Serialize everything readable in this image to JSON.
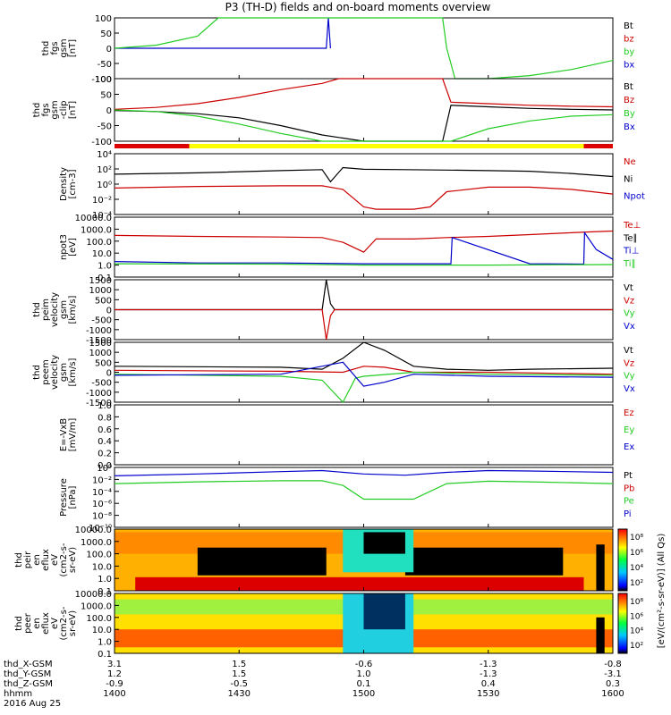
{
  "title": "P3 (TH-D) fields and on-board moments overview",
  "panels": [
    {
      "id": "fgs_gsm",
      "ylabel_lines": [
        "thd",
        "fgs",
        "gsm",
        "[nT]"
      ],
      "ticks": [
        "100",
        "50",
        "0",
        "-50",
        "-100"
      ],
      "legend": [
        {
          "label": "Bt",
          "color": "#000000"
        },
        {
          "label": "bz",
          "color": "#cc0000"
        },
        {
          "label": "by",
          "color": "#22cc22"
        },
        {
          "label": "bx",
          "color": "#0000cc"
        }
      ]
    },
    {
      "id": "fgs_gsm_clip",
      "ylabel_lines": [
        "thd",
        "fgs",
        "gsm",
        "-clip",
        "[nT]"
      ],
      "ticks": [
        "100",
        "50",
        "0",
        "-50",
        "-100"
      ],
      "legend": [
        {
          "label": "Bt",
          "color": "#000000"
        },
        {
          "label": "Bz",
          "color": "#cc0000"
        },
        {
          "label": "By",
          "color": "#22cc22"
        },
        {
          "label": "Bx",
          "color": "#0000cc"
        }
      ]
    },
    {
      "id": "density",
      "ylabel_lines": [
        "Density",
        "[cm-3]"
      ],
      "ticks": [
        "10⁴",
        "10²",
        "10⁰",
        "10⁻²",
        "10⁻⁴"
      ],
      "legend": [
        {
          "label": "Ne",
          "color": "#cc0000"
        },
        {
          "label": "Ni",
          "color": "#000000"
        },
        {
          "label": "Npot",
          "color": "#0000cc"
        }
      ]
    },
    {
      "id": "temp",
      "ylabel_lines": [
        "npot3",
        "[eV]"
      ],
      "ticks": [
        "10000.0",
        "1000.0",
        "100.0",
        "10.0",
        "1.0",
        "0.1"
      ],
      "legend": [
        {
          "label": "Te⊥",
          "color": "#cc0000"
        },
        {
          "label": "Te∥",
          "color": "#000000"
        },
        {
          "label": "Ti⊥",
          "color": "#0000cc"
        },
        {
          "label": "Ti∥",
          "color": "#22cc22"
        }
      ]
    },
    {
      "id": "peim_vel",
      "ylabel_lines": [
        "thd",
        "peim",
        "velocity",
        "gsm",
        "[km/s]"
      ],
      "ticks": [
        "1500",
        "1000",
        "500",
        "0",
        "-500",
        "-1000",
        "-1500"
      ],
      "legend": [
        {
          "label": "Vt",
          "color": "#000000"
        },
        {
          "label": "Vz",
          "color": "#cc0000"
        },
        {
          "label": "Vy",
          "color": "#22cc22"
        },
        {
          "label": "Vx",
          "color": "#0000cc"
        }
      ]
    },
    {
      "id": "peem_vel",
      "ylabel_lines": [
        "thd",
        "peem",
        "velocity",
        "gsm",
        "[km/s]"
      ],
      "ticks": [
        "1500",
        "1000",
        "500",
        "0",
        "-500",
        "-1000",
        "-1500"
      ],
      "legend": [
        {
          "label": "Vt",
          "color": "#000000"
        },
        {
          "label": "Vz",
          "color": "#cc0000"
        },
        {
          "label": "Vy",
          "color": "#22cc22"
        },
        {
          "label": "Vx",
          "color": "#0000cc"
        }
      ]
    },
    {
      "id": "efield",
      "ylabel_lines": [
        "E=-VxB",
        "[mV/m]"
      ],
      "ticks": [
        "1.0",
        "0.8",
        "0.6",
        "0.4",
        "0.2",
        "0.0"
      ],
      "legend": [
        {
          "label": "Ez",
          "color": "#cc0000"
        },
        {
          "label": "Ey",
          "color": "#22cc22"
        },
        {
          "label": "Ex",
          "color": "#0000cc"
        }
      ]
    },
    {
      "id": "pressure",
      "ylabel_lines": [
        "Pressure",
        "[nPa]"
      ],
      "ticks": [
        "10⁰",
        "10⁻²",
        "10⁻⁴",
        "10⁻⁶",
        "10⁻⁸",
        "10⁻¹⁰"
      ],
      "legend": [
        {
          "label": "Pt",
          "color": "#000000"
        },
        {
          "label": "Pb",
          "color": "#cc0000"
        },
        {
          "label": "Pe",
          "color": "#22cc22"
        },
        {
          "label": "Pi",
          "color": "#0000cc"
        }
      ]
    },
    {
      "id": "peir_spec",
      "ylabel_lines": [
        "thd",
        "peir",
        "en",
        "eflux",
        "eV",
        "(cm2-s-",
        "sr-eV)"
      ],
      "ticks": [
        "10000.0",
        "1000.0",
        "100.0",
        "10.0",
        "1.0",
        "0.1"
      ],
      "legend": []
    },
    {
      "id": "peer_spec",
      "ylabel_lines": [
        "thd",
        "peer",
        "en",
        "eflux",
        "eV",
        "(cm2-s-",
        "sr-eV)"
      ],
      "ticks": [
        "10000.0",
        "1000.0",
        "100.0",
        "10.0",
        "1.0",
        "0.1"
      ],
      "legend": []
    }
  ],
  "colorbar": {
    "ticks": [
      "10⁸",
      "10⁶",
      "10⁴",
      "10²"
    ],
    "label": "[eV/(cm²-s-sr-eV)] (All Qs)"
  },
  "x_axis": {
    "ticks": [
      "1400",
      "1430",
      "1500",
      "1530",
      "1600"
    ],
    "rows": [
      {
        "label": "thd_X-GSM",
        "values": [
          "3.1",
          "1.5",
          "-0.6",
          "-1.3",
          "-0.8"
        ]
      },
      {
        "label": "thd_Y-GSM",
        "values": [
          "1.2",
          "1.5",
          "1.0",
          "-1.3",
          "-3.1"
        ]
      },
      {
        "label": "thd_Z-GSM",
        "values": [
          "-0.9",
          "-0.5",
          "0.1",
          "0.4",
          "0.3"
        ]
      },
      {
        "label": "hhmm",
        "values": [
          "1400",
          "1430",
          "1500",
          "1530",
          "1600"
        ]
      }
    ],
    "date": "2016 Aug 25"
  },
  "chart_data": {
    "type": "line",
    "title": "P3 (TH-D) fields and on-board moments overview",
    "time_range_hhmm": [
      "1400",
      "1600"
    ],
    "date": "2016 Aug 25",
    "panels": [
      {
        "name": "fgs gsm B [nT]",
        "ylim": [
          -100,
          100
        ],
        "series": [
          {
            "name": "bx",
            "t": [
              1400,
              1451,
              1451.5,
              1452
            ],
            "v": [
              0,
              0,
              100,
              0
            ]
          },
          {
            "name": "by",
            "t": [
              1400,
              1410,
              1420,
              1425,
              1519,
              1520,
              1522,
              1530,
              1540,
              1550,
              1560
            ],
            "v": [
              0,
              10,
              40,
              100,
              100,
              0,
              -100,
              -100,
              -90,
              -70,
              -40
            ]
          }
        ]
      },
      {
        "name": "fgs gsm clip B [nT]",
        "ylim": [
          -100,
          100
        ],
        "series": [
          {
            "name": "Bt",
            "t": [
              1400,
              1410,
              1420,
              1430,
              1440,
              1450,
              1500,
              1519,
              1521,
              1530,
              1540,
              1550,
              1560
            ],
            "v": [
              -2,
              -5,
              -12,
              -25,
              -50,
              -80,
              -110,
              -110,
              15,
              10,
              5,
              2,
              0
            ]
          },
          {
            "name": "Bz",
            "t": [
              1400,
              1410,
              1420,
              1430,
              1440,
              1450,
              1454,
              1519,
              1521,
              1530,
              1540,
              1550,
              1560
            ],
            "v": [
              2,
              8,
              20,
              40,
              65,
              85,
              100,
              100,
              25,
              20,
              15,
              12,
              10
            ]
          },
          {
            "name": "By",
            "t": [
              1400,
              1410,
              1420,
              1430,
              1440,
              1450,
              1519,
              1521,
              1530,
              1540,
              1550,
              1560
            ],
            "v": [
              0,
              -5,
              -20,
              -45,
              -75,
              -110,
              -110,
              -100,
              -60,
              -35,
              -20,
              -15
            ]
          }
        ]
      },
      {
        "name": "Density [cm-3]",
        "scale": "log",
        "ylim": [
          0.0001,
          10000
        ],
        "series": [
          {
            "name": "Ni",
            "t": [
              1400,
              1420,
              1440,
              1450,
              1452,
              1455,
              1500,
              1510,
              1520,
              1530,
              1540,
              1550,
              1560
            ],
            "v": [
              20,
              30,
              60,
              80,
              2,
              150,
              90,
              80,
              70,
              60,
              50,
              25,
              10
            ]
          },
          {
            "name": "Ne",
            "t": [
              1400,
              1420,
              1440,
              1450,
              1455,
              1500,
              1503,
              1512,
              1516,
              1520,
              1530,
              1540,
              1550,
              1560
            ],
            "v": [
              0.3,
              0.5,
              0.6,
              0.6,
              0.2,
              0.001,
              0.0005,
              0.0005,
              0.001,
              0.1,
              0.4,
              0.4,
              0.2,
              0.05
            ]
          }
        ]
      },
      {
        "name": "npot3 Temperature [eV]",
        "scale": "log",
        "ylim": [
          0.1,
          10000
        ],
        "series": [
          {
            "name": "Te⊥",
            "t": [
              1400,
              1420,
              1440,
              1450,
              1455,
              1500,
              1503,
              1512,
              1520,
              1530,
              1540,
              1550,
              1555,
              1560
            ],
            "v": [
              300,
              250,
              220,
              200,
              80,
              12,
              150,
              150,
              200,
              250,
              350,
              500,
              600,
              700
            ]
          },
          {
            "name": "Ti⊥",
            "t": [
              1400,
              1420,
              1440,
              1500,
              1521,
              1521.3,
              1540,
              1553,
              1553.2,
              1556,
              1560
            ],
            "v": [
              2,
              1.5,
              1.5,
              1.3,
              1.3,
              200,
              1.3,
              1.2,
              500,
              20,
              3
            ]
          },
          {
            "name": "Ti∥",
            "t": [
              1400,
              1440,
              1500,
              1530,
              1560
            ],
            "v": [
              1.3,
              1.2,
              1.0,
              1.0,
              1.1
            ]
          }
        ]
      },
      {
        "name": "peim velocity gsm [km/s]",
        "ylim": [
          -1500,
          1500
        ],
        "series": [
          {
            "name": "Vt",
            "t": [
              1400,
              1450,
              1451,
              1452,
              1453,
              1500,
              1600
            ],
            "v": [
              0,
              0,
              1500,
              300,
              0,
              0,
              0
            ]
          },
          {
            "name": "Vz",
            "t": [
              1400,
              1450,
              1451,
              1452,
              1453,
              1500,
              1600
            ],
            "v": [
              0,
              0,
              -1500,
              -300,
              0,
              0,
              0
            ]
          }
        ]
      },
      {
        "name": "peem velocity gsm [km/s]",
        "ylim": [
          -1500,
          1500
        ],
        "series": [
          {
            "name": "Vt",
            "t": [
              1400,
              1440,
              1450,
              1455,
              1500,
              1505,
              1512,
              1520,
              1530,
              1540,
              1560
            ],
            "v": [
              300,
              250,
              150,
              700,
              1500,
              1100,
              300,
              150,
              100,
              150,
              200
            ]
          },
          {
            "name": "Vz",
            "t": [
              1400,
              1440,
              1455,
              1500,
              1505,
              1512,
              1530,
              1560
            ],
            "v": [
              100,
              50,
              0,
              300,
              250,
              0,
              0,
              -100
            ]
          },
          {
            "name": "Vy",
            "t": [
              1400,
              1440,
              1450,
              1455,
              1458,
              1500,
              1512,
              1530,
              1560
            ],
            "v": [
              -100,
              -200,
              -400,
              -1500,
              -300,
              -200,
              0,
              -100,
              -150
            ]
          },
          {
            "name": "Vx",
            "t": [
              1400,
              1440,
              1455,
              1500,
              1505,
              1512,
              1530,
              1560
            ],
            "v": [
              -150,
              -100,
              500,
              -700,
              -500,
              -100,
              -200,
              -250
            ]
          }
        ]
      },
      {
        "name": "E=-VxB [mV/m]",
        "ylim": [
          0,
          1
        ],
        "series": []
      },
      {
        "name": "Pressure [nPa]",
        "scale": "log",
        "ylim": [
          1e-10,
          1
        ],
        "series": [
          {
            "name": "Pi",
            "t": [
              1400,
              1420,
              1440,
              1450,
              1500,
              1510,
              1520,
              1530,
              1540,
              1560
            ],
            "v": [
              0.04,
              0.08,
              0.2,
              0.3,
              0.08,
              0.05,
              0.15,
              0.3,
              0.25,
              0.15
            ]
          },
          {
            "name": "Pe",
            "t": [
              1400,
              1420,
              1440,
              1450,
              1455,
              1500,
              1512,
              1520,
              1530,
              1540,
              1560
            ],
            "v": [
              0.002,
              0.004,
              0.006,
              0.006,
              0.001,
              5e-06,
              5e-06,
              0.002,
              0.005,
              0.004,
              0.002
            ]
          }
        ]
      }
    ]
  }
}
